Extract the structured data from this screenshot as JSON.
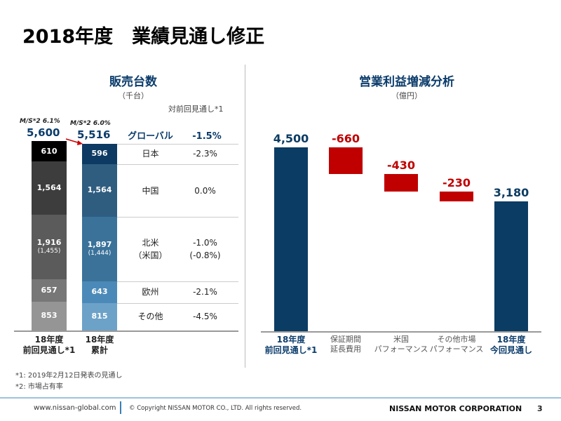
{
  "title": "2018年度　業績見通し修正",
  "sales": {
    "heading": "販売台数",
    "unit": "（千台）",
    "compare_header": "対前回見通し*1",
    "prev": {
      "ms": "M/S*2 6.1%",
      "total": "5,600",
      "label1": "18年度",
      "label2": "前回見通し*1"
    },
    "cur": {
      "ms": "M/S*2 6.0%",
      "total": "5,516",
      "label1": "18年度",
      "label2": "累計"
    },
    "rows": [
      {
        "region": "グローバル",
        "change": "-1.5%"
      },
      {
        "region": "日本",
        "change": "-2.3%",
        "prev": 610,
        "cur": 596,
        "prev_label": "610",
        "cur_label": "596"
      },
      {
        "region": "中国",
        "change": "0.0%",
        "prev": 1564,
        "cur": 1564,
        "prev_label": "1,564",
        "cur_label": "1,564"
      },
      {
        "region": "北米",
        "region2": "（米国）",
        "change": "-1.0%",
        "change2": "(-0.8%)",
        "prev": 1916,
        "cur": 1897,
        "prev_label": "1,916",
        "cur_label": "1,897",
        "prev_sub": "(1,455)",
        "cur_sub": "(1,444)"
      },
      {
        "region": "欧州",
        "change": "-2.1%",
        "prev": 657,
        "cur": 643,
        "prev_label": "657",
        "cur_label": "643"
      },
      {
        "region": "その他",
        "change": "-4.5%",
        "prev": 853,
        "cur": 815,
        "prev_label": "853",
        "cur_label": "815"
      }
    ],
    "prev_colors": [
      "#000000",
      "#3d3d3d",
      "#5b5b5b",
      "#777777",
      "#959595"
    ],
    "cur_colors": [
      "#0d3a63",
      "#2f5d80",
      "#3a729a",
      "#4b8ab8",
      "#6da2c8"
    ]
  },
  "profit": {
    "heading": "営業利益増減分析",
    "unit": "（億円）",
    "bars": [
      {
        "value": 4500,
        "label": "4,500",
        "cat1": "18年度",
        "cat2": "前回見通し*1",
        "type": "total"
      },
      {
        "value": -660,
        "label": "-660",
        "cat1": "保証期間",
        "cat2": "延長費用",
        "type": "delta"
      },
      {
        "value": -430,
        "label": "-430",
        "cat1": "米国",
        "cat2": "パフォーマンス",
        "type": "delta"
      },
      {
        "value": -230,
        "label": "-230",
        "cat1": "その他市場",
        "cat2": "パフォーマンス",
        "type": "delta"
      },
      {
        "value": 3180,
        "label": "3,180",
        "cat1": "18年度",
        "cat2": "今回見通し",
        "type": "total"
      }
    ],
    "total_color": "#0b3c63",
    "neg_color": "#c00000"
  },
  "notes": [
    "*1: 2019年2月12日発表の見通し",
    "*2: 市場占有率"
  ],
  "footer": {
    "url": "www.nissan-global.com",
    "copyright": "© Copyright NISSAN MOTOR CO., LTD. All rights reserved.",
    "company": "NISSAN MOTOR CORPORATION",
    "page": "3"
  }
}
